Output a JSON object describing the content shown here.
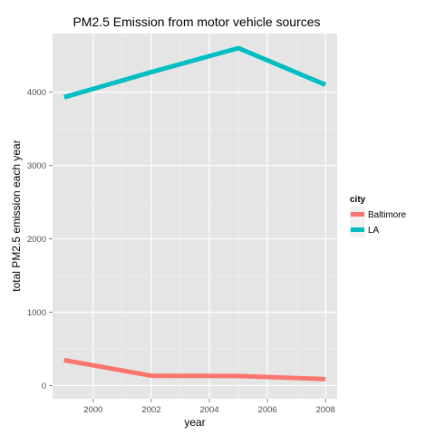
{
  "chart_data": {
    "type": "line",
    "title": "PM2.5 Emission from motor vehicle sources",
    "xlabel": "year",
    "ylabel": "total PM2.5 emission each year",
    "xlim": [
      1998.6,
      2008.4
    ],
    "ylim": [
      -180,
      4800
    ],
    "x_ticks": [
      2000,
      2002,
      2004,
      2006,
      2008
    ],
    "y_ticks": [
      0,
      1000,
      2000,
      3000,
      4000
    ],
    "grid": true,
    "legend": {
      "title": "city",
      "position": "right"
    },
    "series": [
      {
        "name": "Baltimore",
        "color": "#F8766D",
        "x": [
          1999,
          2002,
          2005,
          2008
        ],
        "y": [
          347,
          134,
          130,
          88
        ]
      },
      {
        "name": "LA",
        "color": "#00BFC4",
        "x": [
          1999,
          2002,
          2005,
          2008
        ],
        "y": [
          3931,
          4274,
          4601,
          4101
        ]
      }
    ]
  }
}
